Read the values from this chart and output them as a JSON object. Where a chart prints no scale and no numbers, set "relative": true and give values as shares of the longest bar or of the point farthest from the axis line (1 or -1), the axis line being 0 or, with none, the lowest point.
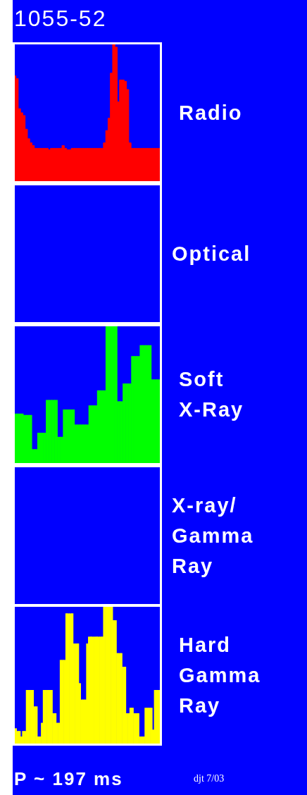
{
  "chart_data": [
    {
      "type": "area",
      "relative": true,
      "annotations": [
        "Radio",
        "1055-52"
      ],
      "color": "#ff0000",
      "categories": [
        null,
        null,
        null,
        null,
        null,
        null,
        null,
        null,
        null,
        null,
        null,
        null,
        null,
        null,
        null,
        null,
        null,
        null,
        null,
        null,
        null,
        null,
        null,
        null,
        null,
        null,
        null,
        null,
        null,
        null,
        null,
        null,
        null,
        null,
        null,
        null,
        null,
        null,
        null,
        null,
        null,
        null,
        null,
        null,
        null,
        null,
        null,
        null,
        null,
        null,
        null,
        null,
        null,
        null,
        null,
        null,
        null,
        null,
        null,
        null,
        null,
        null,
        null,
        null
      ],
      "values": [
        0.77,
        0.75,
        0.53,
        0.5,
        0.48,
        0.38,
        0.31,
        0.28,
        0.26,
        0.24,
        0.24,
        0.24,
        0.24,
        0.24,
        0.24,
        0.23,
        0.24,
        0.24,
        0.24,
        0.24,
        0.24,
        0.26,
        0.24,
        0.23,
        0.23,
        0.24,
        0.24,
        0.24,
        0.24,
        0.24,
        0.24,
        0.24,
        0.24,
        0.24,
        0.24,
        0.24,
        0.24,
        0.24,
        0.24,
        0.28,
        0.37,
        0.46,
        0.79,
        1,
        0.98,
        0.58,
        0.74,
        0.74,
        0.73,
        0.67,
        0.28,
        0.24,
        0.24,
        0.24,
        0.24,
        0.24,
        0.24,
        0.24,
        0.24,
        0.24,
        0.24,
        0.24,
        0.24,
        0.24
      ]
    },
    {
      "type": "other",
      "annotations": [
        "Optical"
      ]
    },
    {
      "type": "bar",
      "relative": true,
      "annotations": [
        "Soft\nX-Ray"
      ],
      "color": "#00ff00",
      "categories": [
        null,
        null,
        null,
        null,
        null,
        null,
        null,
        null,
        null,
        null,
        null,
        null,
        null,
        null,
        null,
        null,
        null,
        null,
        null,
        null,
        null,
        null,
        null,
        null,
        null,
        null,
        null,
        null,
        null,
        null,
        null,
        null,
        null,
        null,
        null,
        null,
        null,
        null,
        null,
        null,
        null,
        null,
        null,
        null,
        null,
        null,
        null,
        null,
        null,
        null,
        null
      ],
      "values": [
        0.36,
        0.36,
        0.36,
        0.35,
        0.35,
        0.35,
        0.1,
        0.1,
        0.22,
        0.22,
        0.22,
        0.46,
        0.46,
        0.46,
        0.46,
        0.19,
        0.19,
        0.39,
        0.39,
        0.39,
        0.39,
        0.28,
        0.28,
        0.28,
        0.28,
        0.28,
        0.42,
        0.42,
        0.42,
        0.53,
        0.53,
        0.53,
        1,
        1,
        1,
        1,
        0.45,
        0.45,
        0.58,
        0.58,
        0.58,
        0.78,
        0.78,
        0.78,
        0.86,
        0.86,
        0.86,
        0.86,
        0.61,
        0.61,
        0.61
      ]
    },
    {
      "type": "other",
      "annotations": [
        "X-ray/\nGamma\nRay"
      ]
    },
    {
      "type": "bar",
      "relative": true,
      "annotations": [
        "Hard\nGamma\nRay",
        "P ~ 197 ms",
        "djt 7/03"
      ],
      "color": "#ffff00",
      "categories": [
        null,
        null,
        null,
        null,
        null,
        null,
        null,
        null,
        null,
        null,
        null,
        null,
        null,
        null,
        null,
        null,
        null,
        null,
        null,
        null,
        null,
        null,
        null,
        null,
        null,
        null,
        null,
        null,
        null,
        null,
        null,
        null,
        null,
        null,
        null,
        null,
        null,
        null,
        null,
        null,
        null,
        null,
        null,
        null,
        null,
        null,
        null,
        null,
        null,
        null,
        null,
        null,
        null,
        null,
        null,
        null,
        null,
        null,
        null,
        null,
        null,
        null,
        null,
        null,
        null,
        null,
        null,
        null,
        null,
        null,
        null,
        null,
        null,
        null,
        null,
        null,
        null
      ],
      "values": [
        0.11,
        0.09,
        0.09,
        0.05,
        0.09,
        0.09,
        0.39,
        0.39,
        0.39,
        0.39,
        0.27,
        0.27,
        0.05,
        0.05,
        0.15,
        0.39,
        0.39,
        0.39,
        0.39,
        0.39,
        0.22,
        0.22,
        0.15,
        0.15,
        0.61,
        0.61,
        0.61,
        0.95,
        0.95,
        0.95,
        0.95,
        0.73,
        0.73,
        0.73,
        0.44,
        0.32,
        0.32,
        0.32,
        0.73,
        0.78,
        0.78,
        0.78,
        0.78,
        0.78,
        0.78,
        0.78,
        0.78,
        1,
        1,
        1,
        1,
        1,
        0.9,
        0.9,
        0.66,
        0.66,
        0.66,
        0.56,
        0.56,
        0.22,
        0.22,
        0.26,
        0.26,
        0.22,
        0.22,
        0.22,
        0.05,
        0.05,
        0.05,
        0.26,
        0.26,
        0.26,
        0.26,
        0.1,
        0.39,
        0.39,
        0.39
      ]
    }
  ]
}
